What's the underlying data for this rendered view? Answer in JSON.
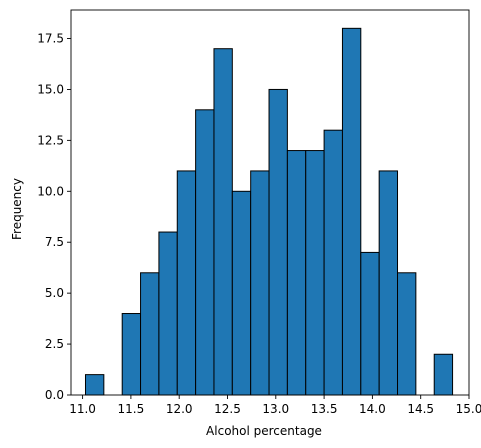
{
  "chart_data": {
    "type": "bar",
    "subtype": "histogram",
    "xlabel": "Alcohol percentage",
    "ylabel": "Frequency",
    "xlim": [
      10.88,
      15.0
    ],
    "ylim": [
      0,
      18.9
    ],
    "grid": false,
    "colors": {
      "bar_fill": "#1f77b4",
      "bar_edge": "#000000"
    },
    "bins": [
      {
        "x0": 11.03,
        "x1": 11.22,
        "count": 1
      },
      {
        "x0": 11.22,
        "x1": 11.41,
        "count": 0
      },
      {
        "x0": 11.41,
        "x1": 11.6,
        "count": 4
      },
      {
        "x0": 11.6,
        "x1": 11.79,
        "count": 6
      },
      {
        "x0": 11.79,
        "x1": 11.98,
        "count": 8
      },
      {
        "x0": 11.98,
        "x1": 12.17,
        "count": 11
      },
      {
        "x0": 12.17,
        "x1": 12.36,
        "count": 14
      },
      {
        "x0": 12.36,
        "x1": 12.55,
        "count": 17
      },
      {
        "x0": 12.55,
        "x1": 12.74,
        "count": 10
      },
      {
        "x0": 12.74,
        "x1": 12.93,
        "count": 11
      },
      {
        "x0": 12.93,
        "x1": 13.12,
        "count": 15
      },
      {
        "x0": 13.12,
        "x1": 13.31,
        "count": 12
      },
      {
        "x0": 13.31,
        "x1": 13.5,
        "count": 12
      },
      {
        "x0": 13.5,
        "x1": 13.69,
        "count": 13
      },
      {
        "x0": 13.69,
        "x1": 13.88,
        "count": 18
      },
      {
        "x0": 13.88,
        "x1": 14.07,
        "count": 7
      },
      {
        "x0": 14.07,
        "x1": 14.26,
        "count": 11
      },
      {
        "x0": 14.26,
        "x1": 14.45,
        "count": 6
      },
      {
        "x0": 14.45,
        "x1": 14.64,
        "count": 0
      },
      {
        "x0": 14.64,
        "x1": 14.83,
        "count": 2
      }
    ],
    "x_ticks": [
      {
        "value": 11.0,
        "label": "11.0"
      },
      {
        "value": 11.5,
        "label": "11.5"
      },
      {
        "value": 12.0,
        "label": "12.0"
      },
      {
        "value": 12.5,
        "label": "12.5"
      },
      {
        "value": 13.0,
        "label": "13.0"
      },
      {
        "value": 13.5,
        "label": "13.5"
      },
      {
        "value": 14.0,
        "label": "14.0"
      },
      {
        "value": 14.5,
        "label": "14.5"
      },
      {
        "value": 15.0,
        "label": "15.0"
      }
    ],
    "y_ticks": [
      {
        "value": 0,
        "label": "0.0"
      },
      {
        "value": 2.5,
        "label": "2.5"
      },
      {
        "value": 5,
        "label": "5.0"
      },
      {
        "value": 7.5,
        "label": "7.5"
      },
      {
        "value": 10,
        "label": "10.0"
      },
      {
        "value": 12.5,
        "label": "12.5"
      },
      {
        "value": 15,
        "label": "15.0"
      },
      {
        "value": 17.5,
        "label": "17.5"
      }
    ]
  }
}
